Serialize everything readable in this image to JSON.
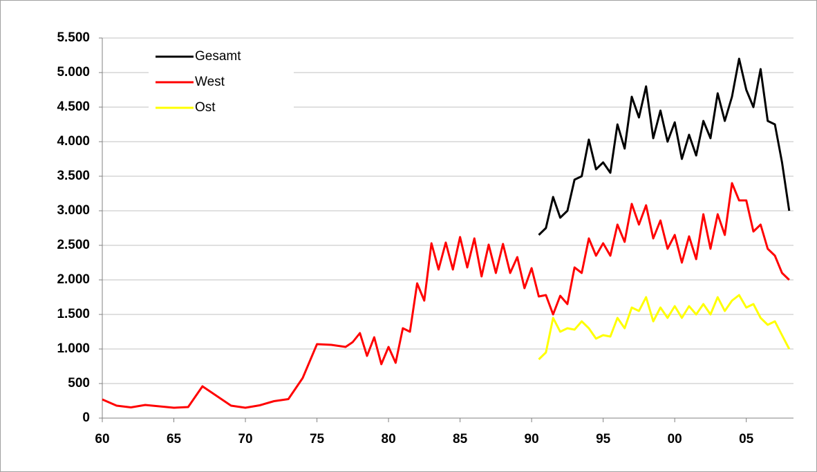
{
  "chart_data": {
    "type": "line",
    "x": [
      1960,
      1961,
      1962,
      1963,
      1964,
      1965,
      1966,
      1967,
      1968,
      1969,
      1970,
      1971,
      1972,
      1973,
      1974,
      1975,
      1976,
      1977,
      1977.5,
      1978,
      1978.5,
      1979,
      1979.5,
      1980,
      1980.5,
      1981,
      1981.5,
      1982,
      1982.5,
      1983,
      1983.5,
      1984,
      1984.5,
      1985,
      1985.5,
      1986,
      1986.5,
      1987,
      1987.5,
      1988,
      1988.5,
      1989,
      1989.5,
      1990,
      1990.5,
      1991,
      1991.5,
      1992,
      1992.5,
      1993,
      1993.5,
      1994,
      1994.5,
      1995,
      1995.5,
      1996,
      1996.5,
      1997,
      1997.5,
      1998,
      1998.5,
      1999,
      1999.5,
      2000,
      2000.5,
      2001,
      2001.5,
      2002,
      2002.5,
      2003,
      2003.5,
      2004,
      2004.5,
      2005,
      2005.5,
      2006,
      2006.5,
      2007,
      2007.5,
      2008
    ],
    "series": [
      {
        "name": "Gesamt",
        "color": "#000000",
        "values": [
          null,
          null,
          null,
          null,
          null,
          null,
          null,
          null,
          null,
          null,
          null,
          null,
          null,
          null,
          null,
          null,
          null,
          null,
          null,
          null,
          null,
          null,
          null,
          null,
          null,
          null,
          null,
          null,
          null,
          null,
          null,
          null,
          null,
          null,
          null,
          null,
          null,
          null,
          null,
          null,
          null,
          null,
          null,
          null,
          2650,
          2750,
          3200,
          2900,
          3000,
          3450,
          3500,
          4030,
          3600,
          3700,
          3550,
          4250,
          3900,
          4650,
          4350,
          4800,
          4050,
          4450,
          4000,
          4280,
          3750,
          4100,
          3800,
          4300,
          4050,
          4700,
          4300,
          4650,
          5200,
          4750,
          4500,
          5050,
          4300,
          4250,
          3700,
          3000
        ]
      },
      {
        "name": "West",
        "color": "#ff0000",
        "values": [
          270,
          180,
          155,
          190,
          170,
          150,
          160,
          460,
          320,
          180,
          150,
          185,
          245,
          275,
          580,
          1070,
          1060,
          1030,
          1100,
          1230,
          900,
          1170,
          780,
          1030,
          800,
          1300,
          1250,
          1950,
          1700,
          2530,
          2150,
          2540,
          2150,
          2620,
          2180,
          2600,
          2050,
          2510,
          2100,
          2520,
          2100,
          2330,
          1880,
          2170,
          1760,
          1780,
          1500,
          1770,
          1650,
          2180,
          2100,
          2600,
          2350,
          2530,
          2350,
          2800,
          2550,
          3100,
          2800,
          3080,
          2600,
          2860,
          2450,
          2650,
          2250,
          2630,
          2300,
          2950,
          2450,
          2950,
          2650,
          3400,
          3150,
          3150,
          2700,
          2800,
          2450,
          2350,
          2100,
          2000
        ]
      },
      {
        "name": "Ost",
        "color": "#ffff00",
        "values": [
          null,
          null,
          null,
          null,
          null,
          null,
          null,
          null,
          null,
          null,
          null,
          null,
          null,
          null,
          null,
          null,
          null,
          null,
          null,
          null,
          null,
          null,
          null,
          null,
          null,
          null,
          null,
          null,
          null,
          null,
          null,
          null,
          null,
          null,
          null,
          null,
          null,
          null,
          null,
          null,
          null,
          null,
          null,
          null,
          850,
          950,
          1450,
          1250,
          1300,
          1280,
          1400,
          1300,
          1150,
          1200,
          1180,
          1450,
          1300,
          1600,
          1550,
          1750,
          1400,
          1600,
          1450,
          1620,
          1450,
          1620,
          1500,
          1650,
          1500,
          1750,
          1550,
          1700,
          1780,
          1600,
          1650,
          1450,
          1350,
          1400,
          1200,
          1000
        ]
      }
    ],
    "xlim": [
      1960,
      2008.3
    ],
    "xticks": [
      {
        "value": 1960,
        "label": "60"
      },
      {
        "value": 1965,
        "label": "65"
      },
      {
        "value": 1970,
        "label": "70"
      },
      {
        "value": 1975,
        "label": "75"
      },
      {
        "value": 1980,
        "label": "80"
      },
      {
        "value": 1985,
        "label": "85"
      },
      {
        "value": 1990,
        "label": "90"
      },
      {
        "value": 1995,
        "label": "95"
      },
      {
        "value": 2000,
        "label": "00"
      },
      {
        "value": 2005,
        "label": "05"
      }
    ],
    "ylim": [
      0,
      5500
    ],
    "yticks": [
      0,
      500,
      {
        "value": 1000,
        "label": "1.000"
      },
      {
        "value": 1500,
        "label": "1.500"
      },
      {
        "value": 2000,
        "label": "2.000"
      },
      {
        "value": 2500,
        "label": "2.500"
      },
      {
        "value": 3000,
        "label": "3.000"
      },
      {
        "value": 3500,
        "label": "3.500"
      },
      {
        "value": 4000,
        "label": "4.000"
      },
      {
        "value": 4500,
        "label": "4.500"
      },
      {
        "value": 5000,
        "label": "5.000"
      },
      {
        "value": 5500,
        "label": "5.500"
      }
    ],
    "grid": true,
    "legend": "upper-left"
  }
}
